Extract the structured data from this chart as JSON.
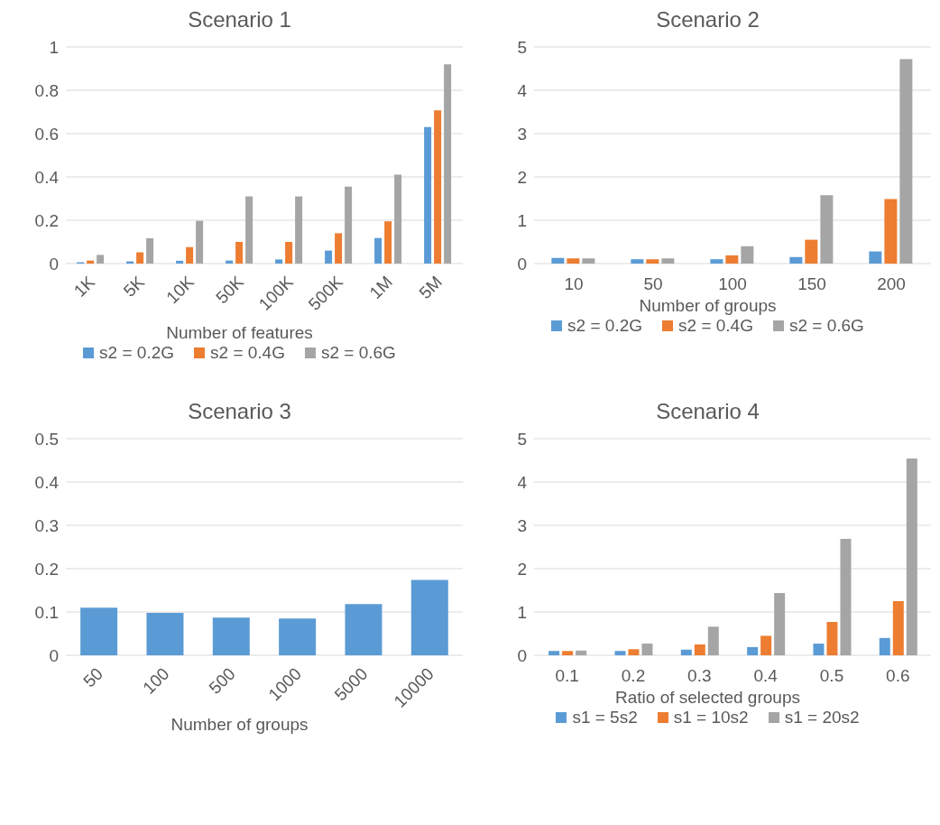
{
  "chart_data": [
    {
      "type": "bar",
      "title": "Scenario 1",
      "xlabel": "Number of features",
      "categories": [
        "1K",
        "5K",
        "10K",
        "50K",
        "100K",
        "500K",
        "1M",
        "5M"
      ],
      "series": [
        {
          "name": "s2 = 0.2G",
          "color": "#5b9bd5",
          "values": [
            0.006,
            0.01,
            0.013,
            0.014,
            0.019,
            0.06,
            0.118,
            0.63
          ]
        },
        {
          "name": "s2 = 0.4G",
          "color": "#ed7d31",
          "values": [
            0.014,
            0.052,
            0.076,
            0.1,
            0.1,
            0.14,
            0.195,
            0.707
          ]
        },
        {
          "name": "s2 = 0.6G",
          "color": "#a5a5a5",
          "values": [
            0.04,
            0.117,
            0.197,
            0.31,
            0.31,
            0.355,
            0.41,
            0.92
          ]
        }
      ],
      "ylim": [
        0,
        1
      ],
      "yticks": [
        0,
        0.2,
        0.4,
        0.6,
        0.8,
        1
      ],
      "grid": "y",
      "legend": "bottom"
    },
    {
      "type": "bar",
      "title": "Scenario 2",
      "xlabel": "Number of groups",
      "categories": [
        "10",
        "50",
        "100",
        "150",
        "200"
      ],
      "series": [
        {
          "name": "s2 = 0.2G",
          "color": "#5b9bd5",
          "values": [
            0.13,
            0.1,
            0.1,
            0.15,
            0.28
          ]
        },
        {
          "name": "s2 = 0.4G",
          "color": "#ed7d31",
          "values": [
            0.12,
            0.1,
            0.19,
            0.55,
            1.49
          ]
        },
        {
          "name": "s2 = 0.6G",
          "color": "#a5a5a5",
          "values": [
            0.12,
            0.12,
            0.4,
            1.58,
            4.72
          ]
        }
      ],
      "ylim": [
        0,
        5
      ],
      "yticks": [
        0,
        1,
        2,
        3,
        4,
        5
      ],
      "grid": "y",
      "legend": "bottom"
    },
    {
      "type": "bar",
      "title": "Scenario 3",
      "xlabel": "Number of groups",
      "categories": [
        "50",
        "100",
        "500",
        "1000",
        "5000",
        "10000"
      ],
      "series": [
        {
          "color": "#5b9bd5",
          "values": [
            0.11,
            0.098,
            0.087,
            0.085,
            0.118,
            0.174
          ]
        }
      ],
      "ylim": [
        0,
        0.5
      ],
      "yticks": [
        0,
        0.1,
        0.2,
        0.3,
        0.4,
        0.5
      ],
      "grid": "y"
    },
    {
      "type": "bar",
      "title": "Scenario 4",
      "xlabel": "Ratio of selected groups",
      "categories": [
        "0.1",
        "0.2",
        "0.3",
        "0.4",
        "0.5",
        "0.6"
      ],
      "series": [
        {
          "name": "s1 = 5s2",
          "color": "#5b9bd5",
          "values": [
            0.1,
            0.1,
            0.13,
            0.19,
            0.27,
            0.4
          ]
        },
        {
          "name": "s1 = 10s2",
          "color": "#ed7d31",
          "values": [
            0.1,
            0.14,
            0.25,
            0.45,
            0.77,
            1.25
          ]
        },
        {
          "name": "s1 = 20s2",
          "color": "#a5a5a5",
          "values": [
            0.11,
            0.27,
            0.66,
            1.44,
            2.69,
            4.54
          ]
        }
      ],
      "ylim": [
        0,
        5
      ],
      "yticks": [
        0,
        1,
        2,
        3,
        4,
        5
      ],
      "grid": "y",
      "legend": "bottom"
    }
  ]
}
